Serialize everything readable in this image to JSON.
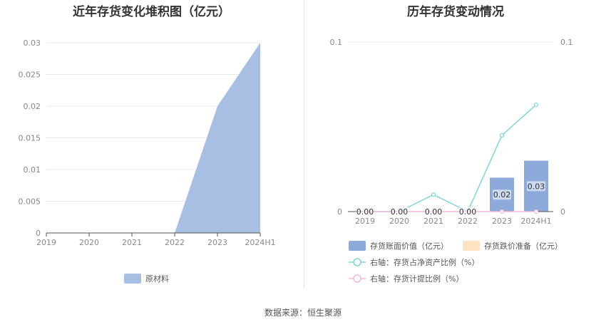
{
  "left_title": "近年存货变化堆积图（亿元）",
  "right_title": "历年存货变动情况",
  "source": "数据来源：恒生聚源",
  "chart_data": [
    {
      "type": "area",
      "title": "近年存货变化堆积图（亿元）",
      "categories": [
        "2019",
        "2020",
        "2021",
        "2022",
        "2023",
        "2024H1"
      ],
      "y_ticks": [
        "0",
        "0.005",
        "0.01",
        "0.015",
        "0.02",
        "0.025",
        "0.03"
      ],
      "ylim": [
        0,
        0.03
      ],
      "grid": true,
      "legend_position": "bottom",
      "series": [
        {
          "name": "原材料",
          "values": [
            0,
            0,
            0,
            0,
            0.02,
            0.03
          ],
          "color": "#a8bfe4"
        }
      ]
    },
    {
      "type": "bar",
      "title": "历年存货变动情况",
      "categories": [
        "2019",
        "2020",
        "2021",
        "2022",
        "2023",
        "2024H1"
      ],
      "left_y_ticks": [
        "0",
        "0.1"
      ],
      "right_y_ticks": [
        "0",
        "0.1"
      ],
      "ylim": [
        0,
        0.1
      ],
      "grid": true,
      "legend_position": "bottom",
      "bar_series": [
        {
          "name": "存货账面价值（亿元）",
          "values": [
            0,
            0,
            0,
            0,
            0.02,
            0.03
          ],
          "labels": [
            "0.00",
            "0.00",
            "0.00",
            "0.00",
            "0.02",
            "0.03"
          ],
          "color": "#8eaadb"
        },
        {
          "name": "存货跌价准备（亿元）",
          "values": [
            0,
            0,
            0,
            0,
            0,
            0
          ],
          "color": "#fde3c2"
        }
      ],
      "line_series": [
        {
          "name": "右轴：存货占净资产比例（%）",
          "values": [
            0,
            0,
            0.01,
            0,
            0.045,
            0.063
          ],
          "color": "#7fd3de"
        },
        {
          "name": "右轴：存货计提比例（%）",
          "values": [
            0,
            0,
            0,
            0,
            0,
            0
          ],
          "color": "#f2b8d8"
        }
      ]
    }
  ]
}
